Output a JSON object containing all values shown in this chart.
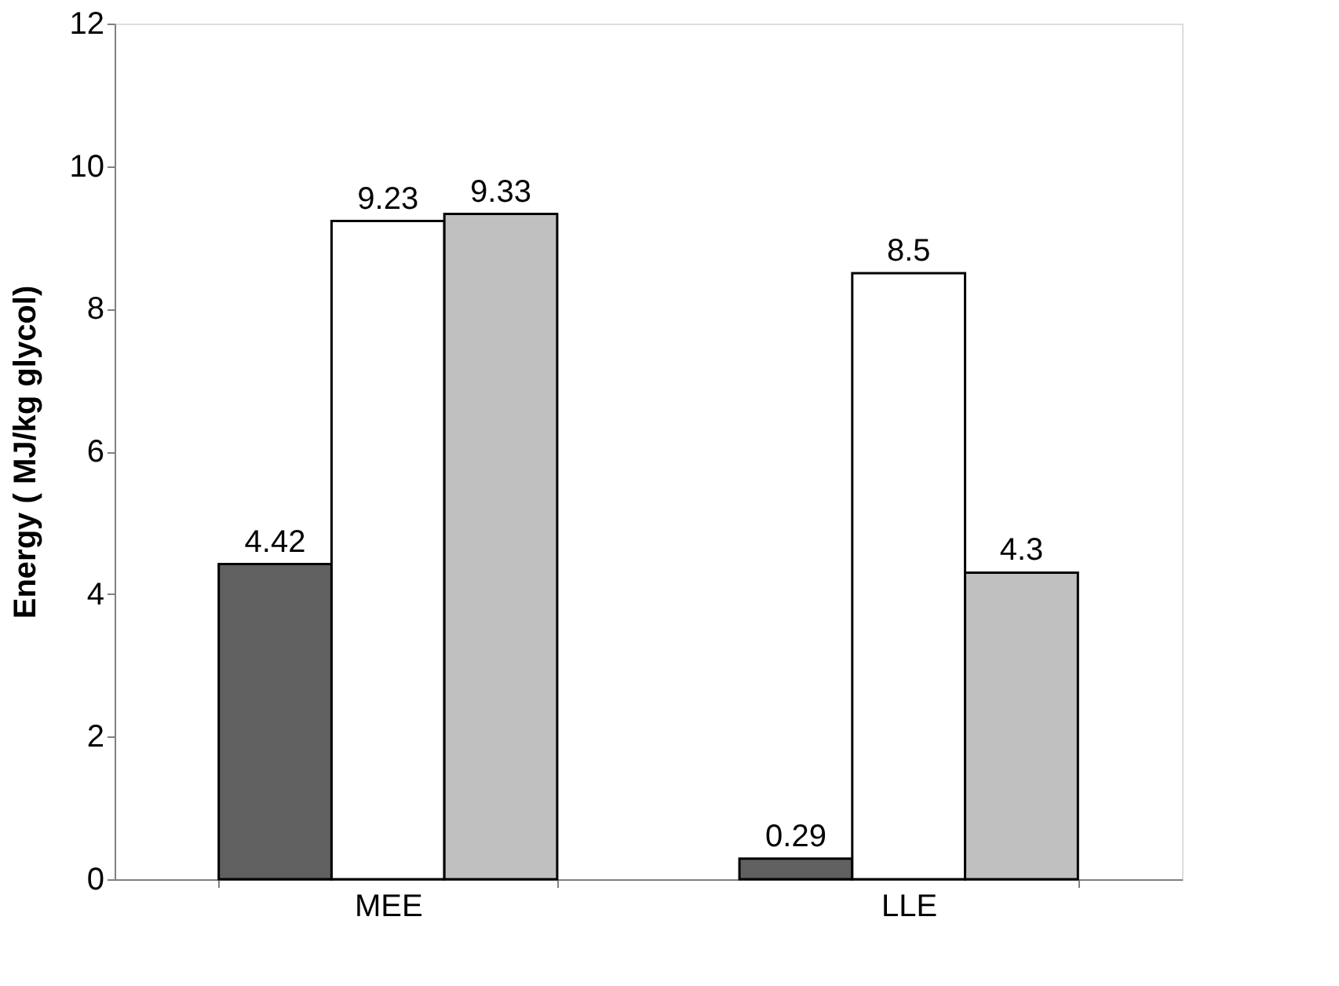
{
  "chart_data": {
    "type": "bar",
    "ylabel": "Energy ( MJ/kg  glycol)",
    "categories": [
      "MEE",
      "LLE"
    ],
    "series": [
      {
        "color": "#606060",
        "values": [
          4.42,
          0.29
        ]
      },
      {
        "color": "#ffffff",
        "values": [
          9.23,
          8.5
        ]
      },
      {
        "color": "#c0c0c0",
        "values": [
          9.33,
          4.3
        ]
      }
    ],
    "ylim": [
      0,
      12
    ],
    "yticks": [
      0,
      2,
      4,
      6,
      8,
      10,
      12
    ],
    "grid": false,
    "legend": false,
    "data_labels": true
  }
}
